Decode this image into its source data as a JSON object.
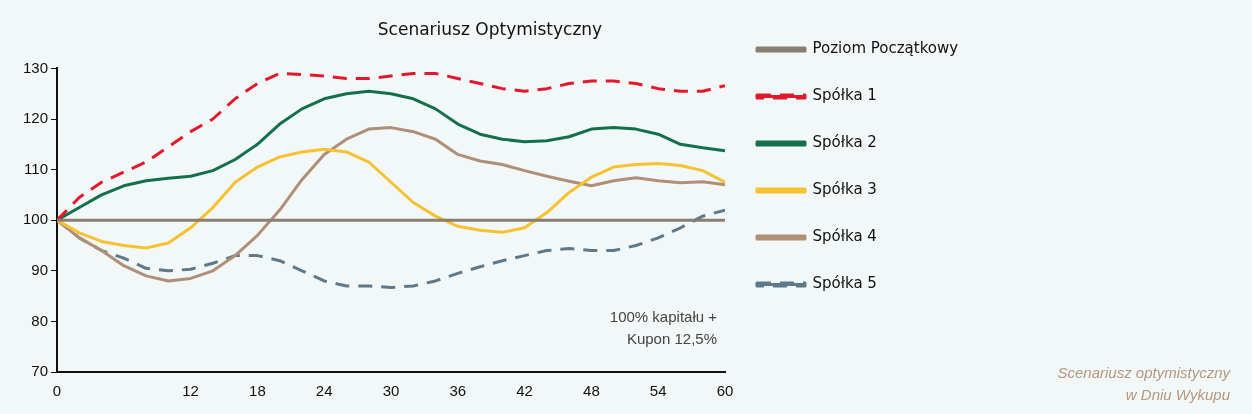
{
  "chart_data": {
    "type": "line",
    "title": "Scenariusz Optymistyczny",
    "x": [
      0,
      2,
      4,
      6,
      8,
      10,
      12,
      14,
      16,
      18,
      20,
      22,
      24,
      26,
      28,
      30,
      32,
      34,
      36,
      38,
      40,
      42,
      44,
      46,
      48,
      50,
      52,
      54,
      56,
      58,
      60
    ],
    "series": [
      {
        "name": "Poziom Początkowy",
        "color": "#8a7d72",
        "line_style": "solid",
        "values": [
          100,
          100,
          100,
          100,
          100,
          100,
          100,
          100,
          100,
          100,
          100,
          100,
          100,
          100,
          100,
          100,
          100,
          100,
          100,
          100,
          100,
          100,
          100,
          100,
          100,
          100,
          100,
          100,
          100,
          100,
          100
        ]
      },
      {
        "name": "Spółka 1",
        "color": "#e3182d",
        "line_style": "dashed",
        "values": [
          100,
          104.5,
          107.5,
          109.5,
          111.5,
          114.5,
          117.5,
          120,
          124,
          127,
          129,
          128.8,
          128.5,
          128,
          128,
          128.5,
          129,
          129,
          128,
          127,
          126,
          125.5,
          126,
          127,
          127.5,
          127.5,
          127,
          126,
          125.5,
          125.5,
          126.6
        ]
      },
      {
        "name": "Spółka 2",
        "color": "#14704a",
        "line_style": "solid",
        "values": [
          100,
          102.5,
          105,
          106.8,
          107.8,
          108.3,
          108.7,
          109.8,
          112,
          115,
          119,
          122,
          124,
          125,
          125.5,
          125,
          124,
          122,
          119,
          117,
          116,
          115.5,
          115.7,
          116.5,
          118,
          118.3,
          118,
          117,
          115,
          114.3,
          113.7
        ]
      },
      {
        "name": "Spółka 3",
        "color": "#f6c232",
        "line_style": "solid",
        "values": [
          100,
          97.5,
          95.8,
          95,
          94.5,
          95.5,
          98.5,
          102.5,
          107.5,
          110.5,
          112.5,
          113.5,
          114,
          113.5,
          111.5,
          107.5,
          103.5,
          100.8,
          98.8,
          98,
          97.6,
          98.5,
          101.5,
          105.5,
          108.5,
          110.5,
          111,
          111.2,
          110.8,
          109.8,
          107.5
        ]
      },
      {
        "name": "Spółka 4",
        "color": "#b08f78",
        "line_style": "solid",
        "values": [
          100,
          96.5,
          94,
          91,
          89,
          88,
          88.5,
          90,
          93,
          97,
          102,
          108,
          113,
          116,
          118,
          118.3,
          117.5,
          116,
          113,
          111.7,
          111,
          109.8,
          108.7,
          107.7,
          106.8,
          107.8,
          108.4,
          107.8,
          107.4,
          107.6,
          107
        ]
      },
      {
        "name": "Spółka 5",
        "color": "#5e7a8a",
        "line_style": "dashed",
        "values": [
          100,
          96.5,
          94,
          92.5,
          90.5,
          90,
          90.3,
          91.5,
          93,
          93,
          92,
          90,
          88,
          87,
          87,
          86.7,
          87,
          88,
          89.5,
          90.8,
          92,
          93,
          94,
          94.4,
          94,
          94,
          95,
          96.5,
          98.5,
          100.8,
          102
        ]
      }
    ],
    "xlim": [
      0,
      60
    ],
    "xticks": [
      0,
      12,
      18,
      24,
      30,
      36,
      42,
      48,
      54,
      60
    ],
    "ylim": [
      70,
      130
    ],
    "yticks": [
      70,
      80,
      90,
      100,
      110,
      120,
      130
    ],
    "grid": false,
    "legend": "right",
    "marker": "none",
    "annotations": [
      "100% kapitału +\nKupon 12,5%",
      "Scenariusz optymistyczny\nw Dniu Wykupu"
    ]
  }
}
